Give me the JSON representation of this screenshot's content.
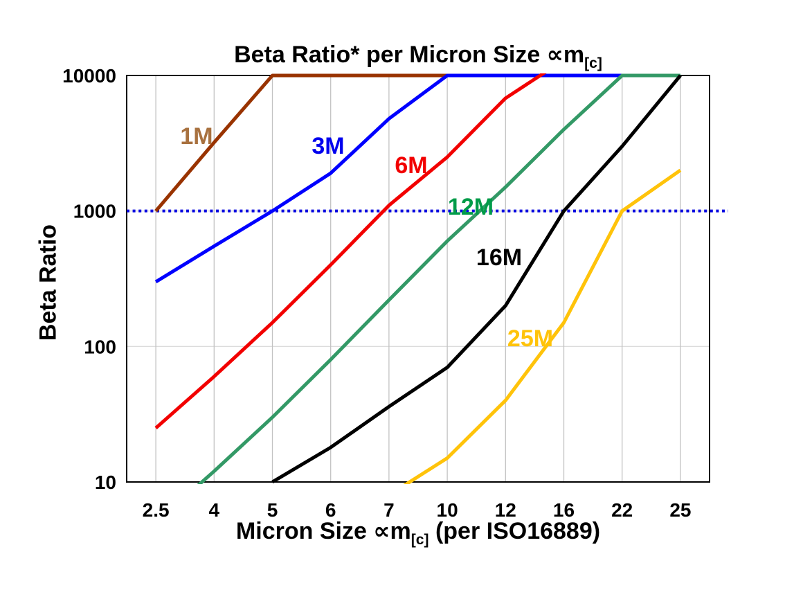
{
  "page": {
    "background": "#ffffff",
    "text_color": "#000000"
  },
  "title": {
    "main": "Beta Ratio* per Micron Size ∝m",
    "sub": "[c]"
  },
  "y_axis": {
    "label": "Beta Ratio",
    "ticks": [
      "10",
      "100",
      "1000",
      "10000"
    ]
  },
  "x_axis": {
    "label_main": "Micron Size ∝m",
    "label_sub": "[c]",
    "label_tail": " (per ISO16889)",
    "ticks": [
      "2.5",
      "4",
      "5",
      "6",
      "7",
      "10",
      "12",
      "16",
      "22",
      "25"
    ]
  },
  "chart_data": {
    "type": "line",
    "title": "Beta Ratio* per Micron Size ∝m[c]",
    "xlabel": "Micron Size ∝m[c] (per ISO16889)",
    "ylabel": "Beta Ratio",
    "x_axis_type": "categorical",
    "categories": [
      2.5,
      4,
      5,
      6,
      7,
      10,
      12,
      16,
      22,
      25
    ],
    "y_scale": "log",
    "ylim": [
      10,
      10000
    ],
    "y_ticks": [
      10,
      100,
      1000,
      10000
    ],
    "grid": {
      "vertical": true,
      "horizontal": true,
      "vertical_color": "#c2c2c2",
      "horizontal_color": "#dcdcdc"
    },
    "border_color": "#000000",
    "legend_position": "inline-labels-on-lines",
    "reference_line": {
      "y": 1000,
      "style": "dotted",
      "color": "#0000e0",
      "note": "horizontal dotted blue line at Beta Ratio = 1000 extending slightly past right edge"
    },
    "series": [
      {
        "name": "1M",
        "color": "#993300",
        "label_color": "#a8713f",
        "values": [
          1000,
          3200,
          10000,
          10000,
          10000,
          10000,
          null,
          null,
          null,
          null
        ]
      },
      {
        "name": "3M",
        "color": "#0000ff",
        "label_color": "#0000ee",
        "values": [
          300,
          550,
          1000,
          1900,
          4800,
          10000,
          10000,
          10000,
          10000,
          null
        ]
      },
      {
        "name": "6M",
        "color": "#f20000",
        "label_color": "#f20000",
        "values": [
          25,
          60,
          150,
          400,
          1100,
          2500,
          6800,
          13000,
          null,
          null
        ]
      },
      {
        "name": "12M",
        "color": "#339966",
        "label_color": "#009b48",
        "values": [
          5,
          12,
          30,
          80,
          220,
          600,
          1500,
          4000,
          10000,
          10000
        ]
      },
      {
        "name": "16M",
        "color": "#000000",
        "label_color": "#000000",
        "values": [
          null,
          null,
          10,
          18,
          36,
          70,
          200,
          1000,
          3000,
          10000
        ]
      },
      {
        "name": "25M",
        "color": "#ffc30a",
        "label_color": "#ffc30a",
        "values": [
          null,
          null,
          null,
          null,
          8,
          15,
          40,
          150,
          1000,
          2000
        ]
      }
    ],
    "notes": "log y-axis 10..10000; values above 10000 are clipped at the plot top; series lines are labeled inline instead of a legend"
  }
}
